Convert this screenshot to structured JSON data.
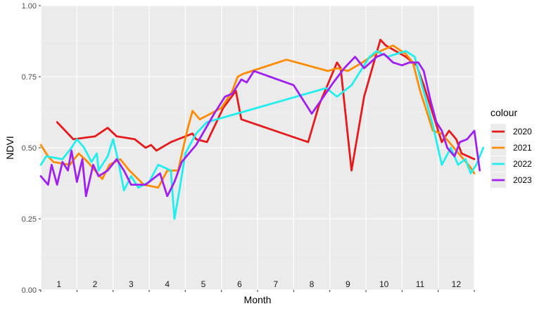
{
  "chart_data": {
    "type": "line",
    "xlabel": "Month",
    "ylabel": "NDVI",
    "ylim": [
      0,
      1
    ],
    "xlim": [
      0,
      12
    ],
    "yticks": [
      "0.00",
      "0.25",
      "0.50",
      "0.75",
      "1.00"
    ],
    "month_labels": [
      "1",
      "2",
      "3",
      "4",
      "5",
      "6",
      "7",
      "8",
      "9",
      "10",
      "11",
      "12"
    ],
    "grid": true,
    "legend": {
      "title": "colour",
      "position": "right"
    },
    "series": [
      {
        "name": "2020",
        "color": "#e41a1c",
        "points": [
          [
            0.45,
            0.59
          ],
          [
            0.9,
            0.53
          ],
          [
            1.5,
            0.54
          ],
          [
            1.85,
            0.57
          ],
          [
            2.1,
            0.54
          ],
          [
            2.6,
            0.53
          ],
          [
            2.9,
            0.5
          ],
          [
            3.05,
            0.51
          ],
          [
            3.2,
            0.49
          ],
          [
            3.6,
            0.52
          ],
          [
            4.2,
            0.55
          ],
          [
            4.3,
            0.53
          ],
          [
            4.6,
            0.52
          ],
          [
            5.05,
            0.64
          ],
          [
            5.4,
            0.7
          ],
          [
            5.55,
            0.6
          ],
          [
            7.4,
            0.52
          ],
          [
            7.7,
            0.65
          ],
          [
            8.2,
            0.8
          ],
          [
            8.3,
            0.78
          ],
          [
            8.6,
            0.42
          ],
          [
            8.95,
            0.68
          ],
          [
            9.4,
            0.88
          ],
          [
            9.55,
            0.86
          ],
          [
            10.1,
            0.82
          ],
          [
            10.4,
            0.79
          ],
          [
            10.6,
            0.72
          ],
          [
            10.9,
            0.6
          ],
          [
            11.1,
            0.52
          ],
          [
            11.3,
            0.56
          ],
          [
            11.5,
            0.53
          ],
          [
            11.65,
            0.48
          ],
          [
            12.0,
            0.46
          ]
        ]
      },
      {
        "name": "2021",
        "color": "#ff8c00",
        "points": [
          [
            0.0,
            0.51
          ],
          [
            0.2,
            0.47
          ],
          [
            0.35,
            0.45
          ],
          [
            0.8,
            0.44
          ],
          [
            1.05,
            0.48
          ],
          [
            1.3,
            0.45
          ],
          [
            1.7,
            0.39
          ],
          [
            1.9,
            0.44
          ],
          [
            2.2,
            0.46
          ],
          [
            2.45,
            0.42
          ],
          [
            2.85,
            0.37
          ],
          [
            3.25,
            0.36
          ],
          [
            3.5,
            0.42
          ],
          [
            3.8,
            0.42
          ],
          [
            4.05,
            0.56
          ],
          [
            4.2,
            0.63
          ],
          [
            4.4,
            0.6
          ],
          [
            5.0,
            0.64
          ],
          [
            5.3,
            0.7
          ],
          [
            5.45,
            0.75
          ],
          [
            5.6,
            0.76
          ],
          [
            6.8,
            0.81
          ],
          [
            7.95,
            0.77
          ],
          [
            8.2,
            0.78
          ],
          [
            8.5,
            0.77
          ],
          [
            8.9,
            0.8
          ],
          [
            9.25,
            0.83
          ],
          [
            9.4,
            0.84
          ],
          [
            9.75,
            0.86
          ],
          [
            10.1,
            0.83
          ],
          [
            10.3,
            0.8
          ],
          [
            10.5,
            0.7
          ],
          [
            10.7,
            0.62
          ],
          [
            10.85,
            0.56
          ],
          [
            11.1,
            0.55
          ],
          [
            11.3,
            0.52
          ],
          [
            11.5,
            0.49
          ],
          [
            11.7,
            0.46
          ],
          [
            11.9,
            0.43
          ],
          [
            12.0,
            0.41
          ]
        ]
      },
      {
        "name": "2022",
        "color": "#22eeee",
        "points": [
          [
            0.0,
            0.44
          ],
          [
            0.15,
            0.47
          ],
          [
            0.6,
            0.46
          ],
          [
            0.85,
            0.5
          ],
          [
            1.0,
            0.53
          ],
          [
            1.2,
            0.5
          ],
          [
            1.4,
            0.45
          ],
          [
            1.55,
            0.48
          ],
          [
            1.6,
            0.42
          ],
          [
            1.85,
            0.47
          ],
          [
            2.0,
            0.53
          ],
          [
            2.15,
            0.45
          ],
          [
            2.3,
            0.35
          ],
          [
            2.5,
            0.4
          ],
          [
            2.7,
            0.36
          ],
          [
            3.0,
            0.38
          ],
          [
            3.25,
            0.44
          ],
          [
            3.6,
            0.42
          ],
          [
            3.7,
            0.25
          ],
          [
            3.85,
            0.36
          ],
          [
            4.0,
            0.48
          ],
          [
            4.3,
            0.55
          ],
          [
            4.6,
            0.59
          ],
          [
            7.9,
            0.71
          ],
          [
            8.2,
            0.68
          ],
          [
            8.6,
            0.72
          ],
          [
            9.1,
            0.82
          ],
          [
            9.3,
            0.84
          ],
          [
            9.6,
            0.82
          ],
          [
            10.1,
            0.84
          ],
          [
            10.35,
            0.82
          ],
          [
            10.55,
            0.72
          ],
          [
            10.85,
            0.58
          ],
          [
            11.1,
            0.44
          ],
          [
            11.35,
            0.5
          ],
          [
            11.55,
            0.44
          ],
          [
            11.75,
            0.46
          ],
          [
            11.9,
            0.41
          ],
          [
            12.05,
            0.44
          ],
          [
            12.25,
            0.5
          ]
        ]
      },
      {
        "name": "2023",
        "color": "#a020f0",
        "points": [
          [
            0.0,
            0.4
          ],
          [
            0.2,
            0.37
          ],
          [
            0.3,
            0.44
          ],
          [
            0.45,
            0.37
          ],
          [
            0.6,
            0.45
          ],
          [
            0.75,
            0.42
          ],
          [
            0.85,
            0.49
          ],
          [
            1.0,
            0.38
          ],
          [
            1.15,
            0.46
          ],
          [
            1.25,
            0.33
          ],
          [
            1.45,
            0.44
          ],
          [
            1.6,
            0.4
          ],
          [
            1.85,
            0.42
          ],
          [
            2.1,
            0.46
          ],
          [
            2.3,
            0.42
          ],
          [
            2.5,
            0.37
          ],
          [
            2.9,
            0.37
          ],
          [
            3.3,
            0.41
          ],
          [
            3.5,
            0.33
          ],
          [
            3.7,
            0.38
          ],
          [
            3.9,
            0.45
          ],
          [
            4.3,
            0.51
          ],
          [
            4.8,
            0.62
          ],
          [
            5.1,
            0.68
          ],
          [
            5.3,
            0.69
          ],
          [
            5.55,
            0.74
          ],
          [
            5.7,
            0.73
          ],
          [
            5.9,
            0.77
          ],
          [
            7.0,
            0.72
          ],
          [
            7.5,
            0.62
          ],
          [
            8.1,
            0.73
          ],
          [
            8.4,
            0.78
          ],
          [
            8.7,
            0.82
          ],
          [
            8.95,
            0.78
          ],
          [
            9.3,
            0.82
          ],
          [
            9.5,
            0.83
          ],
          [
            9.75,
            0.8
          ],
          [
            10.0,
            0.79
          ],
          [
            10.2,
            0.8
          ],
          [
            10.45,
            0.8
          ],
          [
            10.6,
            0.77
          ],
          [
            10.8,
            0.66
          ],
          [
            10.95,
            0.59
          ],
          [
            11.1,
            0.56
          ],
          [
            11.25,
            0.5
          ],
          [
            11.45,
            0.47
          ],
          [
            11.6,
            0.52
          ],
          [
            11.8,
            0.53
          ],
          [
            12.0,
            0.56
          ],
          [
            12.15,
            0.42
          ]
        ]
      }
    ]
  }
}
